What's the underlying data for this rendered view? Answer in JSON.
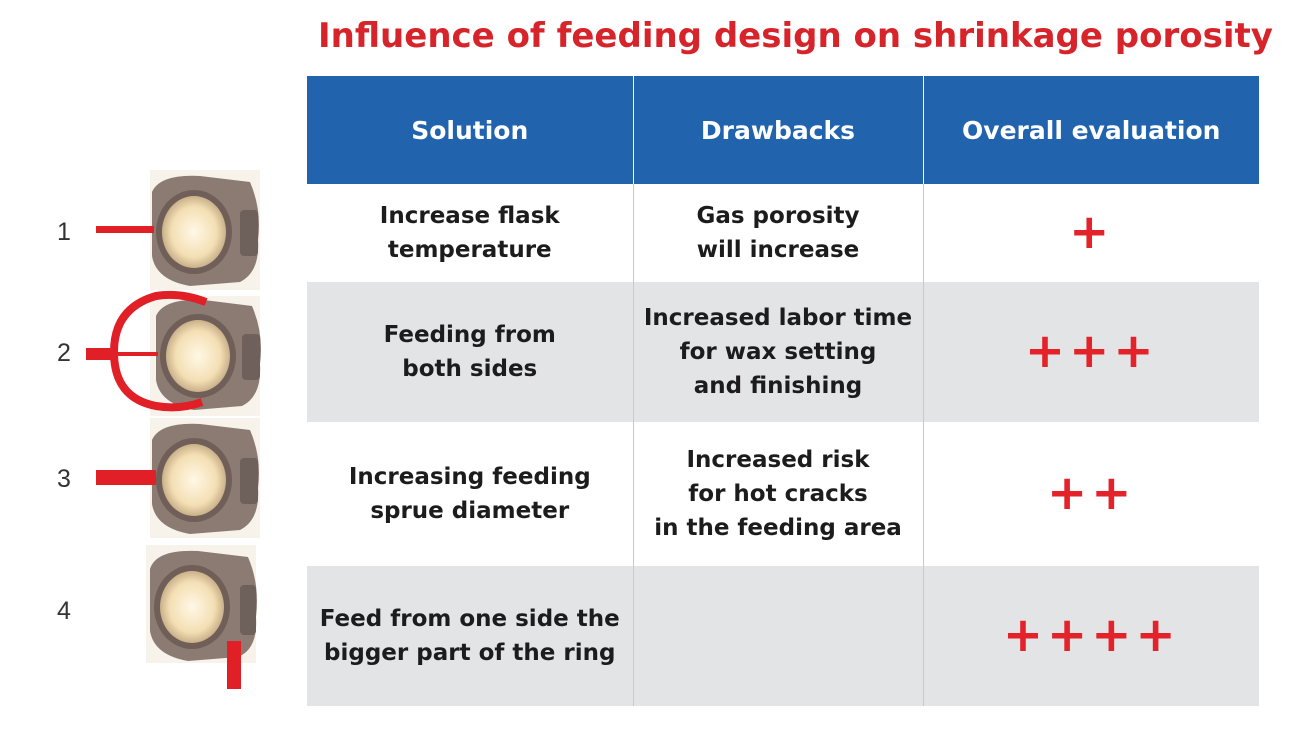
{
  "title": "Influence of feeding design on shrinkage porosity",
  "headers": [
    "Solution",
    "Drawbacks",
    "Overall evaluation"
  ],
  "rows": [
    {
      "number": "1",
      "solution": [
        "Increase flask",
        "temperature"
      ],
      "drawbacks": [
        "Gas porosity",
        "will increase"
      ],
      "evaluation": "+"
    },
    {
      "number": "2",
      "solution": [
        "Feeding from",
        "both sides"
      ],
      "drawbacks": [
        "Increased labor time",
        "for wax setting",
        "and finishing"
      ],
      "evaluation": "+++"
    },
    {
      "number": "3",
      "solution": [
        "Increasing feeding",
        "sprue diameter"
      ],
      "drawbacks": [
        "Increased risk",
        "for hot cracks",
        "in the feeding area"
      ],
      "evaluation": "++"
    },
    {
      "number": "4",
      "solution": [
        "Feed from one side the",
        "bigger part of the ring"
      ],
      "drawbacks": [],
      "evaluation": "++++"
    }
  ],
  "colors": {
    "title": "#d7242b",
    "header_bg": "#2164ad",
    "plus": "#e3222a",
    "sprue": "#e01f27"
  }
}
